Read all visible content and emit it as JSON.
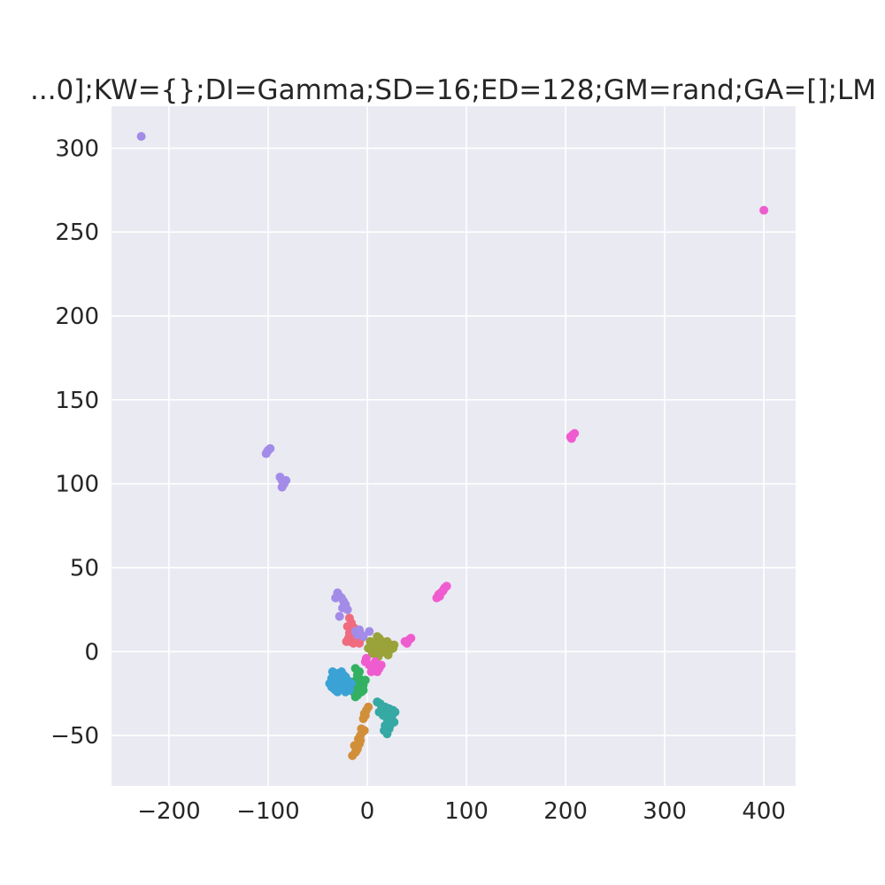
{
  "chart_data": {
    "type": "scatter",
    "title": "...0];KW={};DI=Gamma;SD=16;ED=128;GM=rand;GA=[];LM",
    "xlabel": "",
    "ylabel": "",
    "xlim": [
      -258,
      432
    ],
    "ylim": [
      -80,
      325
    ],
    "grid": true,
    "legend": "none",
    "background": "#eaeaf2",
    "x_ticks": [
      -200,
      -100,
      0,
      100,
      200,
      300,
      400
    ],
    "y_ticks": [
      -50,
      0,
      50,
      100,
      150,
      200,
      250,
      300
    ],
    "x_tick_labels": [
      "−200",
      "−100",
      "0",
      "100",
      "200",
      "300",
      "400"
    ],
    "y_tick_labels": [
      "−50",
      "0",
      "50",
      "100",
      "150",
      "200",
      "250",
      "300"
    ],
    "series": [
      {
        "color": "#f06b7f",
        "points": [
          [
            -18,
            20
          ],
          [
            -16,
            17
          ],
          [
            -20,
            15
          ],
          [
            -15,
            13
          ],
          [
            -18,
            11
          ],
          [
            -14,
            9
          ],
          [
            -19,
            8
          ],
          [
            -12,
            7
          ],
          [
            -17,
            6
          ],
          [
            -21,
            6
          ],
          [
            -10,
            8
          ],
          [
            -8,
            5
          ],
          [
            -14,
            5
          ],
          [
            -6,
            8
          ],
          [
            -16,
            10
          ],
          [
            -13,
            14
          ]
        ]
      },
      {
        "color": "#d28f3a",
        "points": [
          [
            -15,
            -62
          ],
          [
            -12,
            -60
          ],
          [
            -10,
            -58
          ],
          [
            -13,
            -56
          ],
          [
            -8,
            -55
          ],
          [
            -9,
            -52
          ],
          [
            -7,
            -50
          ],
          [
            -5,
            -48
          ],
          [
            -3,
            -47
          ],
          [
            -6,
            -46
          ],
          [
            -4,
            -40
          ],
          [
            -2,
            -38
          ],
          [
            -1,
            -35
          ],
          [
            1,
            -33
          ],
          [
            -3,
            -37
          ],
          [
            -7,
            -53
          ],
          [
            -11,
            -59
          ]
        ]
      },
      {
        "color": "#9aa33a",
        "points": [
          [
            3,
            6
          ],
          [
            6,
            4
          ],
          [
            8,
            2
          ],
          [
            10,
            5
          ],
          [
            12,
            8
          ],
          [
            14,
            3
          ],
          [
            16,
            1
          ],
          [
            18,
            5
          ],
          [
            20,
            6
          ],
          [
            22,
            3
          ],
          [
            24,
            4
          ],
          [
            26,
            2
          ],
          [
            5,
            -1
          ],
          [
            9,
            -2
          ],
          [
            13,
            -1
          ],
          [
            17,
            0
          ],
          [
            11,
            -3
          ],
          [
            7,
            1
          ],
          [
            19,
            2
          ],
          [
            21,
            -2
          ],
          [
            15,
            6
          ],
          [
            23,
            1
          ],
          [
            1,
            2
          ],
          [
            27,
            4
          ],
          [
            10,
            9
          ]
        ]
      },
      {
        "color": "#33b062",
        "points": [
          [
            -12,
            -10
          ],
          [
            -10,
            -14
          ],
          [
            -8,
            -16
          ],
          [
            -14,
            -18
          ],
          [
            -6,
            -18
          ],
          [
            -10,
            -20
          ],
          [
            -4,
            -20
          ],
          [
            -12,
            -22
          ],
          [
            -8,
            -22
          ],
          [
            -2,
            -17
          ],
          [
            -14,
            -24
          ],
          [
            -6,
            -24
          ],
          [
            -10,
            -26
          ],
          [
            -4,
            -23
          ],
          [
            -12,
            -27
          ],
          [
            -8,
            -12
          ]
        ]
      },
      {
        "color": "#36a9a4",
        "points": [
          [
            10,
            -30
          ],
          [
            14,
            -32
          ],
          [
            18,
            -33
          ],
          [
            22,
            -34
          ],
          [
            26,
            -35
          ],
          [
            28,
            -36
          ],
          [
            12,
            -36
          ],
          [
            16,
            -38
          ],
          [
            20,
            -40
          ],
          [
            24,
            -42
          ],
          [
            18,
            -44
          ],
          [
            22,
            -46
          ],
          [
            20,
            -49
          ],
          [
            15,
            -34
          ],
          [
            25,
            -38
          ],
          [
            27,
            -42
          ],
          [
            23,
            -44
          ],
          [
            19,
            -36
          ],
          [
            13,
            -31
          ],
          [
            17,
            -47
          ]
        ]
      },
      {
        "color": "#3ba2d6",
        "points": [
          [
            -38,
            -19
          ],
          [
            -36,
            -16
          ],
          [
            -34,
            -14
          ],
          [
            -32,
            -18
          ],
          [
            -30,
            -20
          ],
          [
            -28,
            -16
          ],
          [
            -26,
            -22
          ],
          [
            -24,
            -18
          ],
          [
            -22,
            -15
          ],
          [
            -20,
            -20
          ],
          [
            -18,
            -23
          ],
          [
            -34,
            -22
          ],
          [
            -30,
            -13
          ],
          [
            -26,
            -12
          ],
          [
            -22,
            -24
          ],
          [
            -36,
            -21
          ],
          [
            -32,
            -23
          ],
          [
            -28,
            -21
          ],
          [
            -24,
            -14
          ],
          [
            -20,
            -17
          ],
          [
            -16,
            -19
          ],
          [
            -30,
            -24
          ],
          [
            -27,
            -18
          ],
          [
            -35,
            -12
          ]
        ]
      },
      {
        "color": "#a38be8",
        "points": [
          [
            -30,
            35
          ],
          [
            -28,
            33
          ],
          [
            -26,
            32
          ],
          [
            -24,
            30
          ],
          [
            -22,
            28
          ],
          [
            -25,
            26
          ],
          [
            -28,
            21
          ],
          [
            -32,
            32
          ],
          [
            -20,
            25
          ],
          [
            -12,
            12
          ],
          [
            -10,
            10
          ],
          [
            -8,
            13
          ],
          [
            -6,
            10
          ],
          [
            -4,
            9
          ],
          [
            2,
            12
          ],
          [
            -100,
            120
          ],
          [
            -102,
            118
          ],
          [
            -98,
            121
          ],
          [
            -101,
            119
          ],
          [
            -88,
            104
          ],
          [
            -86,
            102
          ],
          [
            -84,
            100
          ],
          [
            -82,
            102
          ],
          [
            -86,
            98
          ],
          [
            -228,
            307
          ]
        ]
      },
      {
        "color": "#ef5ccf",
        "points": [
          [
            70,
            32
          ],
          [
            72,
            34
          ],
          [
            74,
            35
          ],
          [
            76,
            36
          ],
          [
            78,
            38
          ],
          [
            80,
            39
          ],
          [
            73,
            33
          ],
          [
            77,
            37
          ],
          [
            40,
            5
          ],
          [
            42,
            7
          ],
          [
            44,
            8
          ],
          [
            38,
            6
          ],
          [
            -2,
            -6
          ],
          [
            2,
            -8
          ],
          [
            6,
            -10
          ],
          [
            10,
            -12
          ],
          [
            14,
            -8
          ],
          [
            8,
            -6
          ],
          [
            4,
            -12
          ],
          [
            12,
            -10
          ],
          [
            -1,
            -4
          ],
          [
            205,
            128
          ],
          [
            207,
            129
          ],
          [
            209,
            130
          ],
          [
            206,
            127
          ],
          [
            400,
            263
          ]
        ]
      }
    ]
  }
}
